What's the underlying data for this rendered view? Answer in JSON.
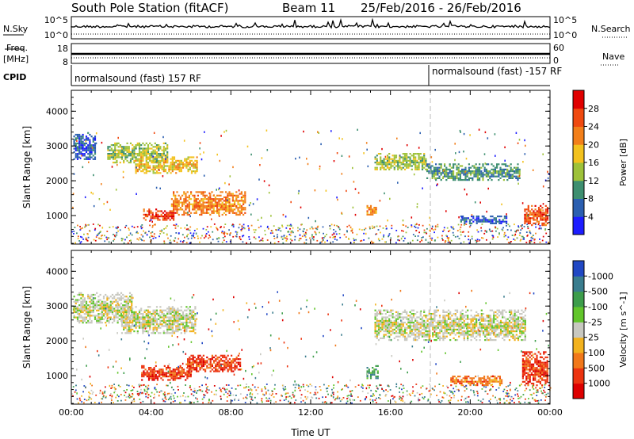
{
  "header": {
    "station": "South Pole Station (fitACF)",
    "beam": "Beam 11",
    "date_range": "25/Feb/2016 - 26/Feb/2016"
  },
  "strip_labels": {
    "nsky": "N.Sky",
    "nsky_ticks": [
      "10^5",
      "10^0"
    ],
    "nsearch": "N.Search",
    "nsearch_ticks": [
      "10^5",
      "10^0"
    ],
    "freq": "Freq.",
    "freq_unit": "[MHz]",
    "freq_ticks": [
      "18",
      "8"
    ],
    "nave": "Nave",
    "nave_ticks": [
      "60",
      "0"
    ],
    "cpid": "CPID",
    "cpid_left": "normalsound (fast) 157 RF",
    "cpid_right": "normalsound (fast) -157 RF"
  },
  "chart_data": [
    {
      "type": "heatmap",
      "title": "",
      "xlabel": "Time UT",
      "ylabel": "Slant Range [km]",
      "x_ticks": [
        "00:00",
        "04:00",
        "08:00",
        "12:00",
        "16:00",
        "20:00",
        "00:00"
      ],
      "y_ticks": [
        1000,
        2000,
        3000,
        4000
      ],
      "xlim_hours": [
        0,
        24
      ],
      "ylim_km": [
        180,
        4600
      ],
      "colorbar": {
        "label": "Power [dB]",
        "ticks": [
          "4",
          "8",
          "12",
          "16",
          "20",
          "24",
          "28"
        ],
        "colors": [
          "#1d1dff",
          "#2b5fb0",
          "#3e8f70",
          "#9ec23a",
          "#f3c21e",
          "#f27f1a",
          "#f04a10",
          "#e00000"
        ]
      },
      "echo_regions": [
        {
          "t": [
            0.1,
            1.2
          ],
          "range_km": [
            2600,
            3400
          ],
          "level": 1
        },
        {
          "t": [
            1.8,
            4.8
          ],
          "range_km": [
            2500,
            3100
          ],
          "level": 3
        },
        {
          "t": [
            3.2,
            6.3
          ],
          "range_km": [
            2200,
            2700
          ],
          "level": 4
        },
        {
          "t": [
            3.6,
            5.2
          ],
          "range_km": [
            850,
            1200
          ],
          "level": 6
        },
        {
          "t": [
            5.0,
            8.7
          ],
          "range_km": [
            1000,
            1700
          ],
          "level": 5
        },
        {
          "t": [
            15.2,
            17.8
          ],
          "range_km": [
            2300,
            2800
          ],
          "level": 3
        },
        {
          "t": [
            17.8,
            22.5
          ],
          "range_km": [
            2000,
            2500
          ],
          "level": 2
        },
        {
          "t": [
            14.8,
            15.3
          ],
          "range_km": [
            1000,
            1300
          ],
          "level": 5
        },
        {
          "t": [
            19.5,
            21.8
          ],
          "range_km": [
            750,
            1000
          ],
          "level": 1
        },
        {
          "t": [
            22.7,
            23.9
          ],
          "range_km": [
            700,
            1300
          ],
          "level": 6
        }
      ]
    },
    {
      "type": "heatmap",
      "title": "",
      "xlabel": "Time UT",
      "ylabel": "Slant Range [km]",
      "x_ticks": [
        "00:00",
        "04:00",
        "08:00",
        "12:00",
        "16:00",
        "20:00",
        "00:00"
      ],
      "y_ticks": [
        1000,
        2000,
        3000,
        4000
      ],
      "xlim_hours": [
        0,
        24
      ],
      "ylim_km": [
        180,
        4600
      ],
      "colorbar": {
        "label": "Velocity [m s^-1]",
        "ticks": [
          "1000",
          "500",
          "100",
          "25",
          "-25",
          "-100",
          "-500",
          "-1000"
        ],
        "colors": [
          "#2148c4",
          "#3a7d8e",
          "#3d9d4b",
          "#62c52b",
          "#c8c8c0",
          "#f2b21e",
          "#f1781a",
          "#ec3410",
          "#dd0000"
        ]
      },
      "echo_regions": [
        {
          "t": [
            0.1,
            3.0
          ],
          "range_km": [
            2500,
            3400
          ],
          "level": 4
        },
        {
          "t": [
            2.5,
            6.2
          ],
          "range_km": [
            2200,
            3000
          ],
          "level": 4
        },
        {
          "t": [
            3.5,
            6.0
          ],
          "range_km": [
            850,
            1300
          ],
          "level": 7
        },
        {
          "t": [
            5.8,
            8.5
          ],
          "range_km": [
            1100,
            1600
          ],
          "level": 7
        },
        {
          "t": [
            15.2,
            22.8
          ],
          "range_km": [
            2000,
            2900
          ],
          "level": 4
        },
        {
          "t": [
            14.8,
            15.4
          ],
          "range_km": [
            900,
            1300
          ],
          "level": 2
        },
        {
          "t": [
            19.0,
            21.6
          ],
          "range_km": [
            700,
            1000
          ],
          "level": 6
        },
        {
          "t": [
            22.6,
            23.9
          ],
          "range_km": [
            700,
            1700
          ],
          "level": 7
        }
      ]
    }
  ]
}
